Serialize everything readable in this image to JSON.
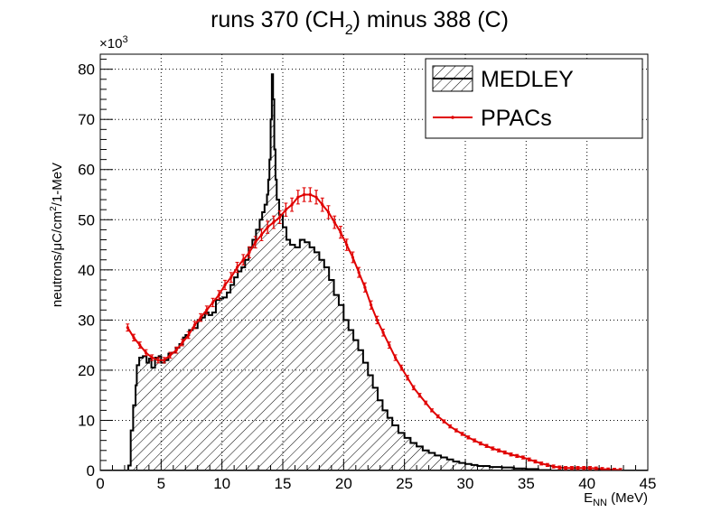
{
  "chart_data": {
    "type": "histogram",
    "title_parts": [
      "runs 370 (CH",
      "2",
      ") minus 388 (C)"
    ],
    "xlabel_main": "E",
    "xlabel_sub": "NN",
    "xlabel_unit": " (MeV)",
    "ylabel_parts": [
      "neutrons/",
      "μ",
      "C/cm",
      "2",
      "/1-MeV"
    ],
    "y_exponent_prefix": "×10",
    "y_exponent_power": "3",
    "xlim": [
      0,
      45
    ],
    "ylim": [
      0,
      83
    ],
    "xticks": [
      0,
      5,
      10,
      15,
      20,
      25,
      30,
      35,
      40,
      45
    ],
    "yticks": [
      0,
      10,
      20,
      30,
      40,
      50,
      60,
      70,
      80
    ],
    "grid": true,
    "legend_position": "top-right",
    "series": [
      {
        "name": "MEDLEY",
        "style": "hatched-histogram",
        "color": "#000000",
        "points": [
          [
            0,
            0
          ],
          [
            2.0,
            0
          ],
          [
            2.3,
            1
          ],
          [
            2.5,
            8
          ],
          [
            2.7,
            13
          ],
          [
            2.9,
            17
          ],
          [
            3.0,
            21
          ],
          [
            3.2,
            22.5
          ],
          [
            3.5,
            22.8
          ],
          [
            3.8,
            21.5
          ],
          [
            4.0,
            22.3
          ],
          [
            4.2,
            20.5
          ],
          [
            4.5,
            22.5
          ],
          [
            4.8,
            22.8
          ],
          [
            5.0,
            21.5
          ],
          [
            5.3,
            22
          ],
          [
            5.6,
            23.3
          ],
          [
            5.9,
            23.5
          ],
          [
            6.2,
            24.5
          ],
          [
            6.5,
            25.2
          ],
          [
            6.8,
            26.5
          ],
          [
            7.0,
            27
          ],
          [
            7.3,
            28
          ],
          [
            7.6,
            28.4
          ],
          [
            8.0,
            30
          ],
          [
            8.3,
            30.5
          ],
          [
            8.6,
            31.5
          ],
          [
            8.9,
            31
          ],
          [
            9.2,
            31.5
          ],
          [
            9.5,
            34
          ],
          [
            9.8,
            34.3
          ],
          [
            10.1,
            34.5
          ],
          [
            10.4,
            35.5
          ],
          [
            10.7,
            37
          ],
          [
            11.0,
            38.5
          ],
          [
            11.3,
            39.7
          ],
          [
            11.6,
            40.5
          ],
          [
            11.9,
            42
          ],
          [
            12.2,
            44.5
          ],
          [
            12.5,
            46
          ],
          [
            12.8,
            48
          ],
          [
            13.1,
            50
          ],
          [
            13.3,
            51.5
          ],
          [
            13.5,
            53
          ],
          [
            13.7,
            55
          ],
          [
            13.8,
            58
          ],
          [
            13.9,
            62
          ],
          [
            14.0,
            70
          ],
          [
            14.1,
            79
          ],
          [
            14.2,
            74
          ],
          [
            14.3,
            64
          ],
          [
            14.4,
            58
          ],
          [
            14.5,
            54
          ],
          [
            14.7,
            51
          ],
          [
            15.0,
            48.5
          ],
          [
            15.3,
            46
          ],
          [
            15.6,
            45
          ],
          [
            16.0,
            44.5
          ],
          [
            16.4,
            46
          ],
          [
            16.8,
            45.5
          ],
          [
            17.2,
            44.5
          ],
          [
            17.6,
            43.5
          ],
          [
            18.0,
            42
          ],
          [
            18.4,
            40.5
          ],
          [
            18.8,
            38
          ],
          [
            19.2,
            35
          ],
          [
            19.6,
            33
          ],
          [
            20.0,
            30
          ],
          [
            20.4,
            28
          ],
          [
            20.8,
            26
          ],
          [
            21.2,
            24
          ],
          [
            21.6,
            21.5
          ],
          [
            22.0,
            19
          ],
          [
            22.4,
            16.5
          ],
          [
            22.8,
            14
          ],
          [
            23.2,
            12
          ],
          [
            23.6,
            10.5
          ],
          [
            24.0,
            9
          ],
          [
            24.5,
            7.5
          ],
          [
            25.0,
            6.5
          ],
          [
            25.5,
            5.5
          ],
          [
            26.0,
            4.8
          ],
          [
            26.5,
            4
          ],
          [
            27.0,
            3.5
          ],
          [
            27.5,
            3
          ],
          [
            28.0,
            2.6
          ],
          [
            28.5,
            2.2
          ],
          [
            29.0,
            1.8
          ],
          [
            29.5,
            1.5
          ],
          [
            30.0,
            1.3
          ],
          [
            30.5,
            1.1
          ],
          [
            31.0,
            0.9
          ],
          [
            32.0,
            0.7
          ],
          [
            33.0,
            0.6
          ],
          [
            34.0,
            0.4
          ],
          [
            35.0,
            0.3
          ],
          [
            36.0,
            0.1
          ],
          [
            37.0,
            0
          ]
        ]
      },
      {
        "name": "PPACs",
        "style": "line-with-error-bars",
        "color": "#e00000",
        "points": [
          [
            2.25,
            28.5
          ],
          [
            2.75,
            26.5
          ],
          [
            3.25,
            25
          ],
          [
            3.75,
            23.5
          ],
          [
            4.25,
            22.5
          ],
          [
            4.75,
            22
          ],
          [
            5.25,
            22
          ],
          [
            5.75,
            23
          ],
          [
            6.25,
            24
          ],
          [
            6.75,
            25.5
          ],
          [
            7.25,
            27
          ],
          [
            7.75,
            29
          ],
          [
            8.25,
            30.5
          ],
          [
            8.75,
            32
          ],
          [
            9.25,
            33.5
          ],
          [
            9.75,
            35
          ],
          [
            10.25,
            37
          ],
          [
            10.75,
            38.5
          ],
          [
            11.25,
            40.5
          ],
          [
            11.75,
            42
          ],
          [
            12.25,
            43.5
          ],
          [
            12.75,
            45.5
          ],
          [
            13.25,
            47
          ],
          [
            13.75,
            48.5
          ],
          [
            14.25,
            49.5
          ],
          [
            14.75,
            50.5
          ],
          [
            15.25,
            52
          ],
          [
            15.75,
            53
          ],
          [
            16.25,
            54.5
          ],
          [
            16.75,
            55
          ],
          [
            17.25,
            55
          ],
          [
            17.75,
            54.5
          ],
          [
            18.25,
            53
          ],
          [
            18.75,
            51.5
          ],
          [
            19.25,
            49.5
          ],
          [
            19.75,
            47.5
          ],
          [
            20.25,
            45
          ],
          [
            20.75,
            42.5
          ],
          [
            21.25,
            39.5
          ],
          [
            21.75,
            36.5
          ],
          [
            22.25,
            33
          ],
          [
            22.75,
            30
          ],
          [
            23.25,
            27.5
          ],
          [
            23.75,
            25
          ],
          [
            24.25,
            22.5
          ],
          [
            24.75,
            20.5
          ],
          [
            25.25,
            18.5
          ],
          [
            25.75,
            16.5
          ],
          [
            26.25,
            15
          ],
          [
            26.75,
            13.5
          ],
          [
            27.25,
            12
          ],
          [
            27.75,
            10.8
          ],
          [
            28.25,
            9.8
          ],
          [
            28.75,
            8.8
          ],
          [
            29.25,
            8
          ],
          [
            29.75,
            7.3
          ],
          [
            30.25,
            6.6
          ],
          [
            30.75,
            6
          ],
          [
            31.25,
            5.4
          ],
          [
            31.75,
            4.9
          ],
          [
            32.25,
            4.4
          ],
          [
            32.75,
            4
          ],
          [
            33.25,
            3.6
          ],
          [
            33.75,
            3.2
          ],
          [
            34.25,
            2.9
          ],
          [
            34.75,
            2.6
          ],
          [
            35.25,
            2.2
          ],
          [
            35.75,
            1.8
          ],
          [
            36.25,
            1.4
          ],
          [
            36.75,
            1.1
          ],
          [
            37.25,
            0.8
          ],
          [
            37.75,
            0.6
          ],
          [
            38.25,
            0.5
          ],
          [
            38.75,
            0.5
          ],
          [
            39.25,
            0.5
          ],
          [
            39.75,
            0.5
          ],
          [
            40.25,
            0.5
          ],
          [
            40.75,
            0.4
          ],
          [
            41.25,
            0.3
          ],
          [
            41.75,
            0.2
          ],
          [
            42.25,
            0.15
          ],
          [
            42.75,
            0.1
          ]
        ]
      }
    ]
  }
}
